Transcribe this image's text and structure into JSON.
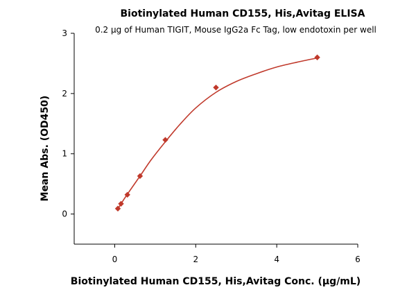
{
  "chart_data": {
    "type": "scatter",
    "title": "Biotinylated Human CD155, His,Avitag ELISA",
    "subtitle": "0.2 μg of Human TIGIT, Mouse IgG2a Fc Tag, low endotoxin per well",
    "xlabel": "Biotinylated Human CD155, His,Avitag Conc. (μg/mL)",
    "ylabel": "Mean Abs. (OD450)",
    "xlim": [
      -1,
      6
    ],
    "ylim": [
      -0.5,
      3
    ],
    "xticks": [
      0,
      2,
      4,
      6
    ],
    "yticks": [
      0,
      1,
      2,
      3
    ],
    "grid": false,
    "legend": "none",
    "series": [
      {
        "color": "#c0392b",
        "marker": "diamond",
        "points": [
          {
            "x": 0.078,
            "y": 0.09
          },
          {
            "x": 0.156,
            "y": 0.17
          },
          {
            "x": 0.313,
            "y": 0.32
          },
          {
            "x": 0.625,
            "y": 0.63
          },
          {
            "x": 1.25,
            "y": 1.23
          },
          {
            "x": 2.5,
            "y": 2.1
          },
          {
            "x": 5.0,
            "y": 2.6
          }
        ]
      }
    ],
    "fit_curve": {
      "color": "#c0392b",
      "x": [
        0.078,
        0.156,
        0.313,
        0.625,
        0.9,
        1.25,
        1.6,
        2.0,
        2.5,
        3.0,
        3.5,
        4.0,
        4.5,
        5.0
      ],
      "y": [
        0.08,
        0.17,
        0.33,
        0.63,
        0.9,
        1.2,
        1.48,
        1.76,
        2.02,
        2.2,
        2.33,
        2.44,
        2.52,
        2.59
      ]
    }
  }
}
